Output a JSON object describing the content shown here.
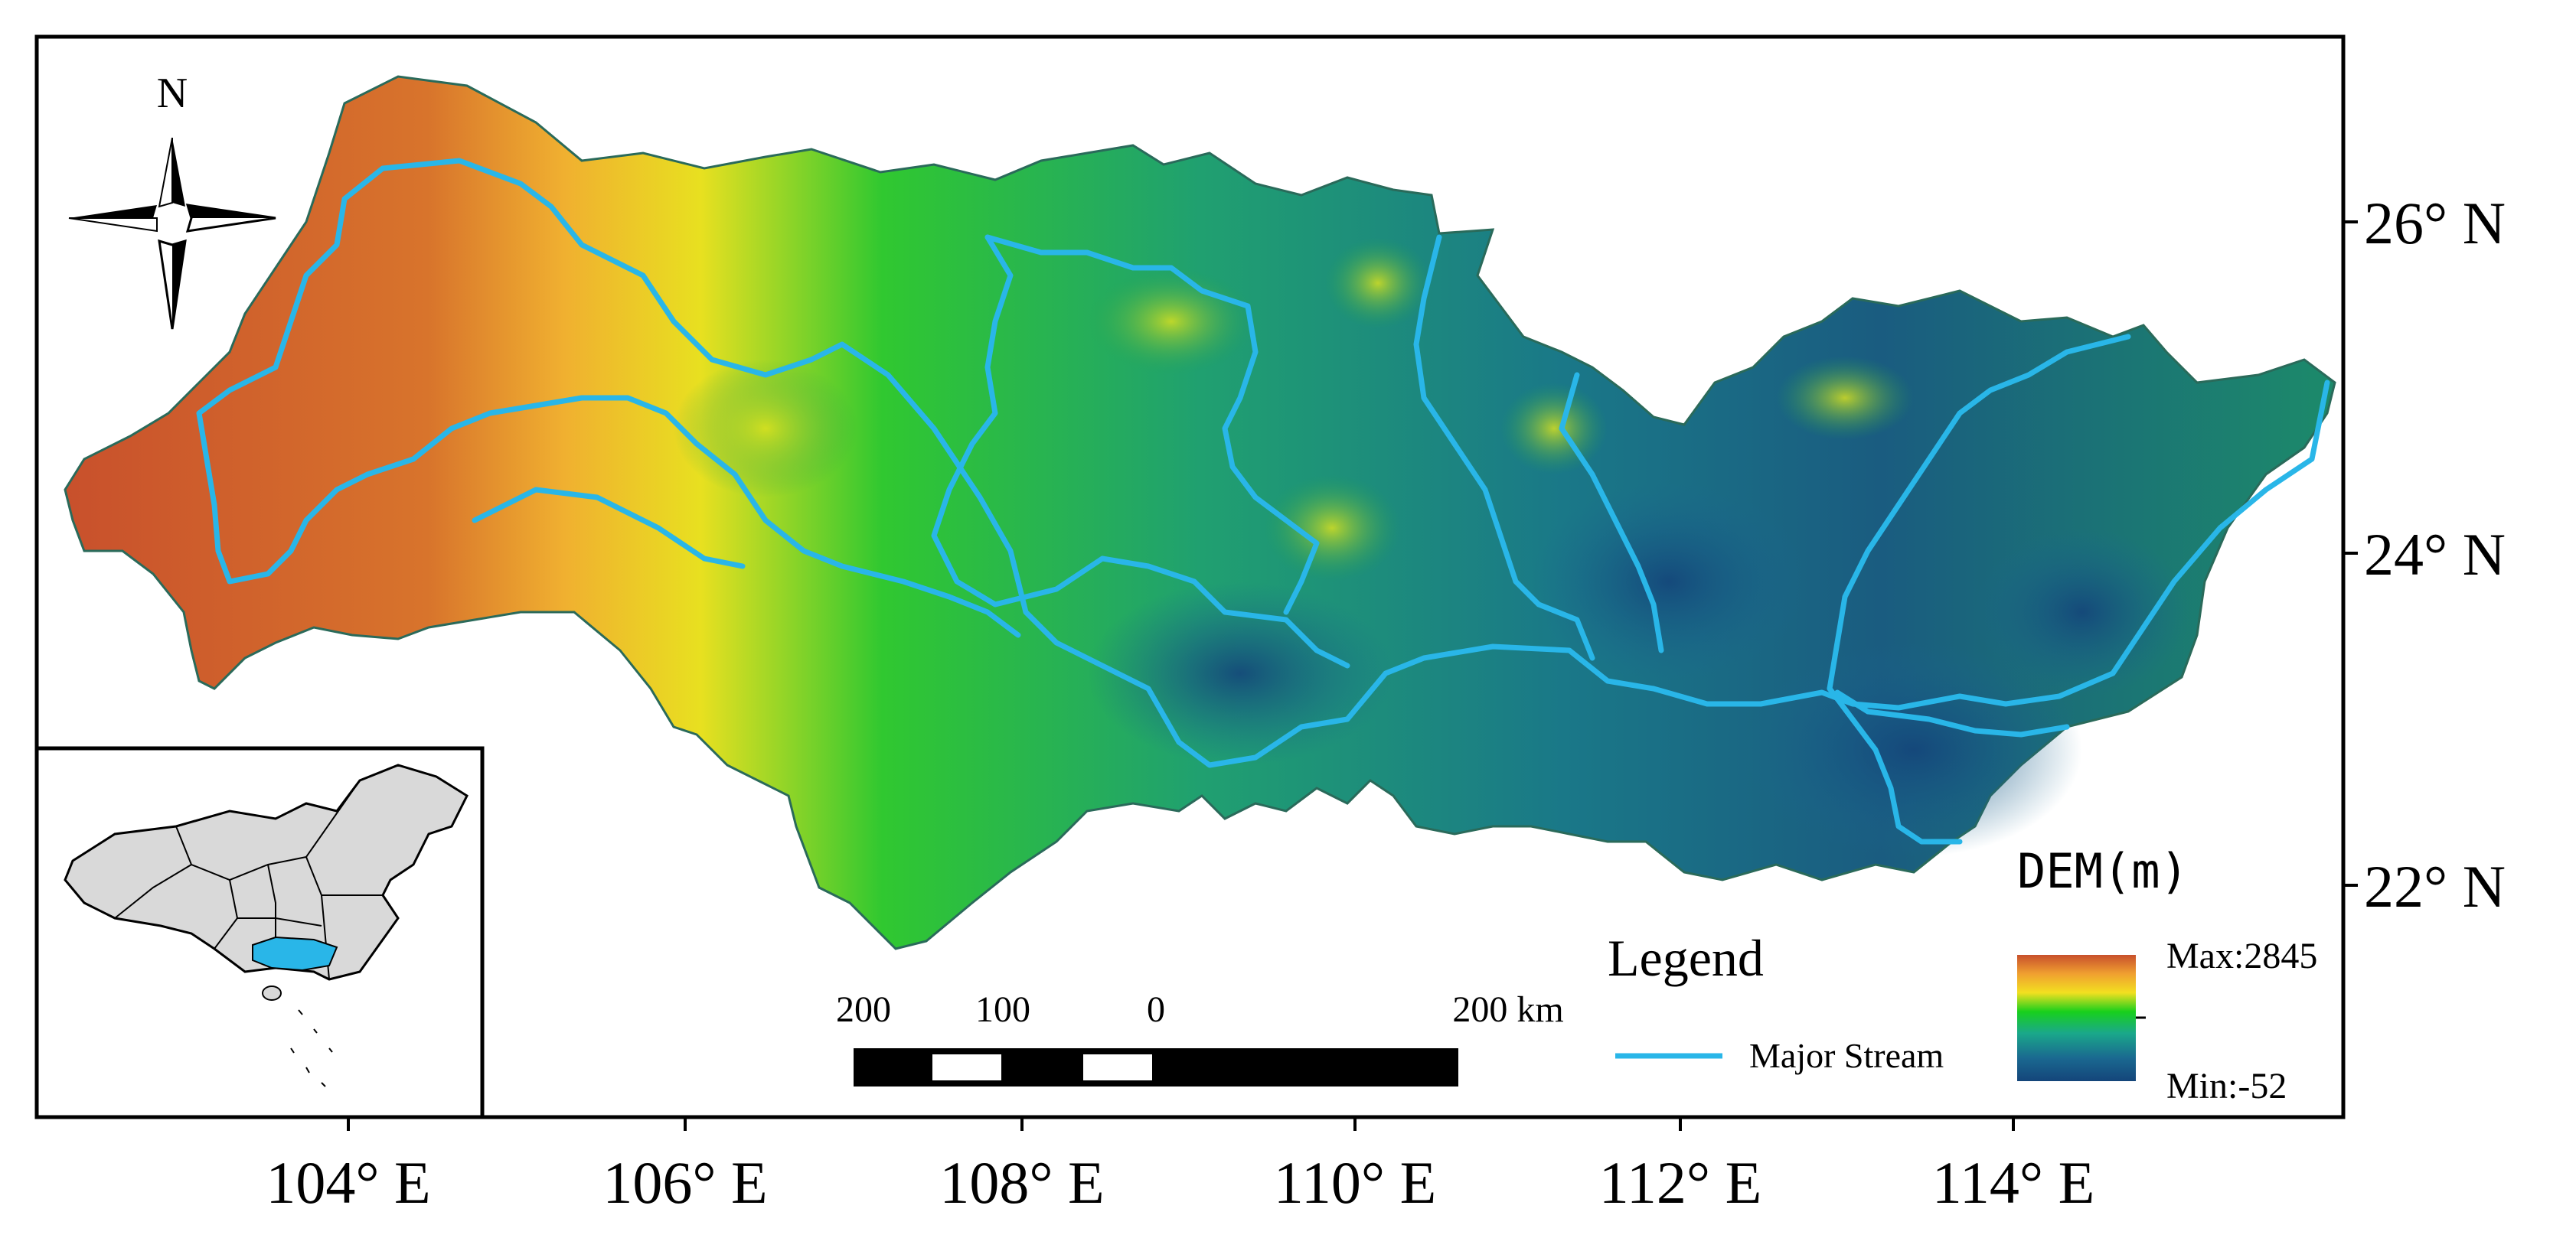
{
  "map": {
    "north_label": "N",
    "lon_labels": [
      "104° E",
      "106° E",
      "108° E",
      "110° E",
      "112° E",
      "114° E"
    ],
    "lat_labels": [
      "26° N",
      "24° N",
      "22° N"
    ],
    "scale_bar": {
      "labels": [
        "200",
        "100",
        "0",
        "200 km"
      ]
    },
    "legend": {
      "title": "Legend",
      "stream_label": "Major Stream",
      "stream_color": "#29b6e8"
    },
    "dem": {
      "title": "DEM(m)",
      "max_label": "Max:2845",
      "min_label": "Min:-52",
      "colors": [
        "#c8502c",
        "#f0a030",
        "#f2e020",
        "#18d01c",
        "#1aa88a",
        "#1a6890",
        "#14457a"
      ]
    },
    "inset": {
      "country_fill": "#d9d9d9",
      "basin_fill": "#29b6e8"
    }
  }
}
